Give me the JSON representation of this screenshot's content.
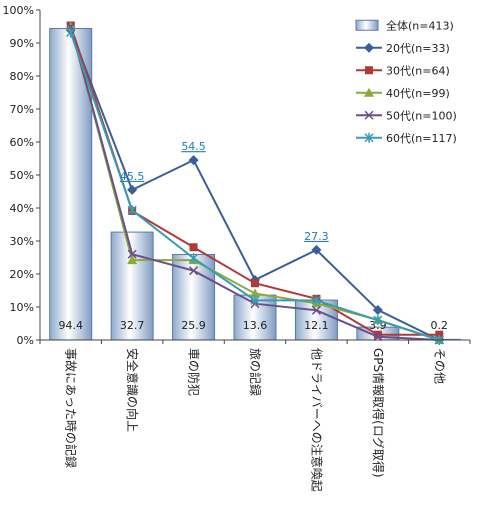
{
  "chart_data": {
    "type": "bar",
    "categories": [
      "事故にあった時の記録",
      "安全意識の向上",
      "車の防犯",
      "旅の記録",
      "他ドライバーへの注意喚起",
      "GPS情報取得(ログ取得)",
      "その他"
    ],
    "ylim": [
      0,
      100
    ],
    "yticks": [
      "0%",
      "10%",
      "20%",
      "30%",
      "40%",
      "50%",
      "60%",
      "70%",
      "80%",
      "90%",
      "100%"
    ],
    "bar_series": {
      "name": "全体(n=413)",
      "values": [
        94.4,
        32.7,
        25.9,
        13.6,
        12.1,
        3.9,
        0.2
      ],
      "labels": [
        "94.4",
        "32.7",
        "25.9",
        "13.6",
        "12.1",
        "3.9",
        "0.2"
      ]
    },
    "series": [
      {
        "name": "20代(n=33)",
        "color": "#3b5e9a",
        "marker": "diamond",
        "values": [
          93.9,
          45.5,
          54.5,
          18.2,
          27.3,
          9.1,
          0.0
        ]
      },
      {
        "name": "30代(n=64)",
        "color": "#b0393b",
        "marker": "square",
        "values": [
          95.3,
          39.1,
          28.1,
          17.2,
          12.5,
          1.6,
          1.6
        ]
      },
      {
        "name": "40代(n=99)",
        "color": "#8aaa3a",
        "marker": "triangle",
        "values": [
          95.0,
          24.2,
          24.2,
          14.1,
          11.1,
          6.1,
          0.0
        ]
      },
      {
        "name": "50代(n=100)",
        "color": "#6a4f8c",
        "marker": "x",
        "values": [
          95.0,
          26.0,
          21.0,
          11.0,
          9.0,
          1.0,
          0.0
        ]
      },
      {
        "name": "60代(n=117)",
        "color": "#3a9cb2",
        "marker": "star",
        "values": [
          93.2,
          39.3,
          24.8,
          12.0,
          12.0,
          6.0,
          0.0
        ]
      }
    ],
    "annotations": [
      {
        "series": 0,
        "index": 1,
        "text": "45.5"
      },
      {
        "series": 0,
        "index": 2,
        "text": "54.5"
      },
      {
        "series": 0,
        "index": 4,
        "text": "27.3"
      }
    ],
    "grid": false,
    "legend_position": "top-right"
  }
}
